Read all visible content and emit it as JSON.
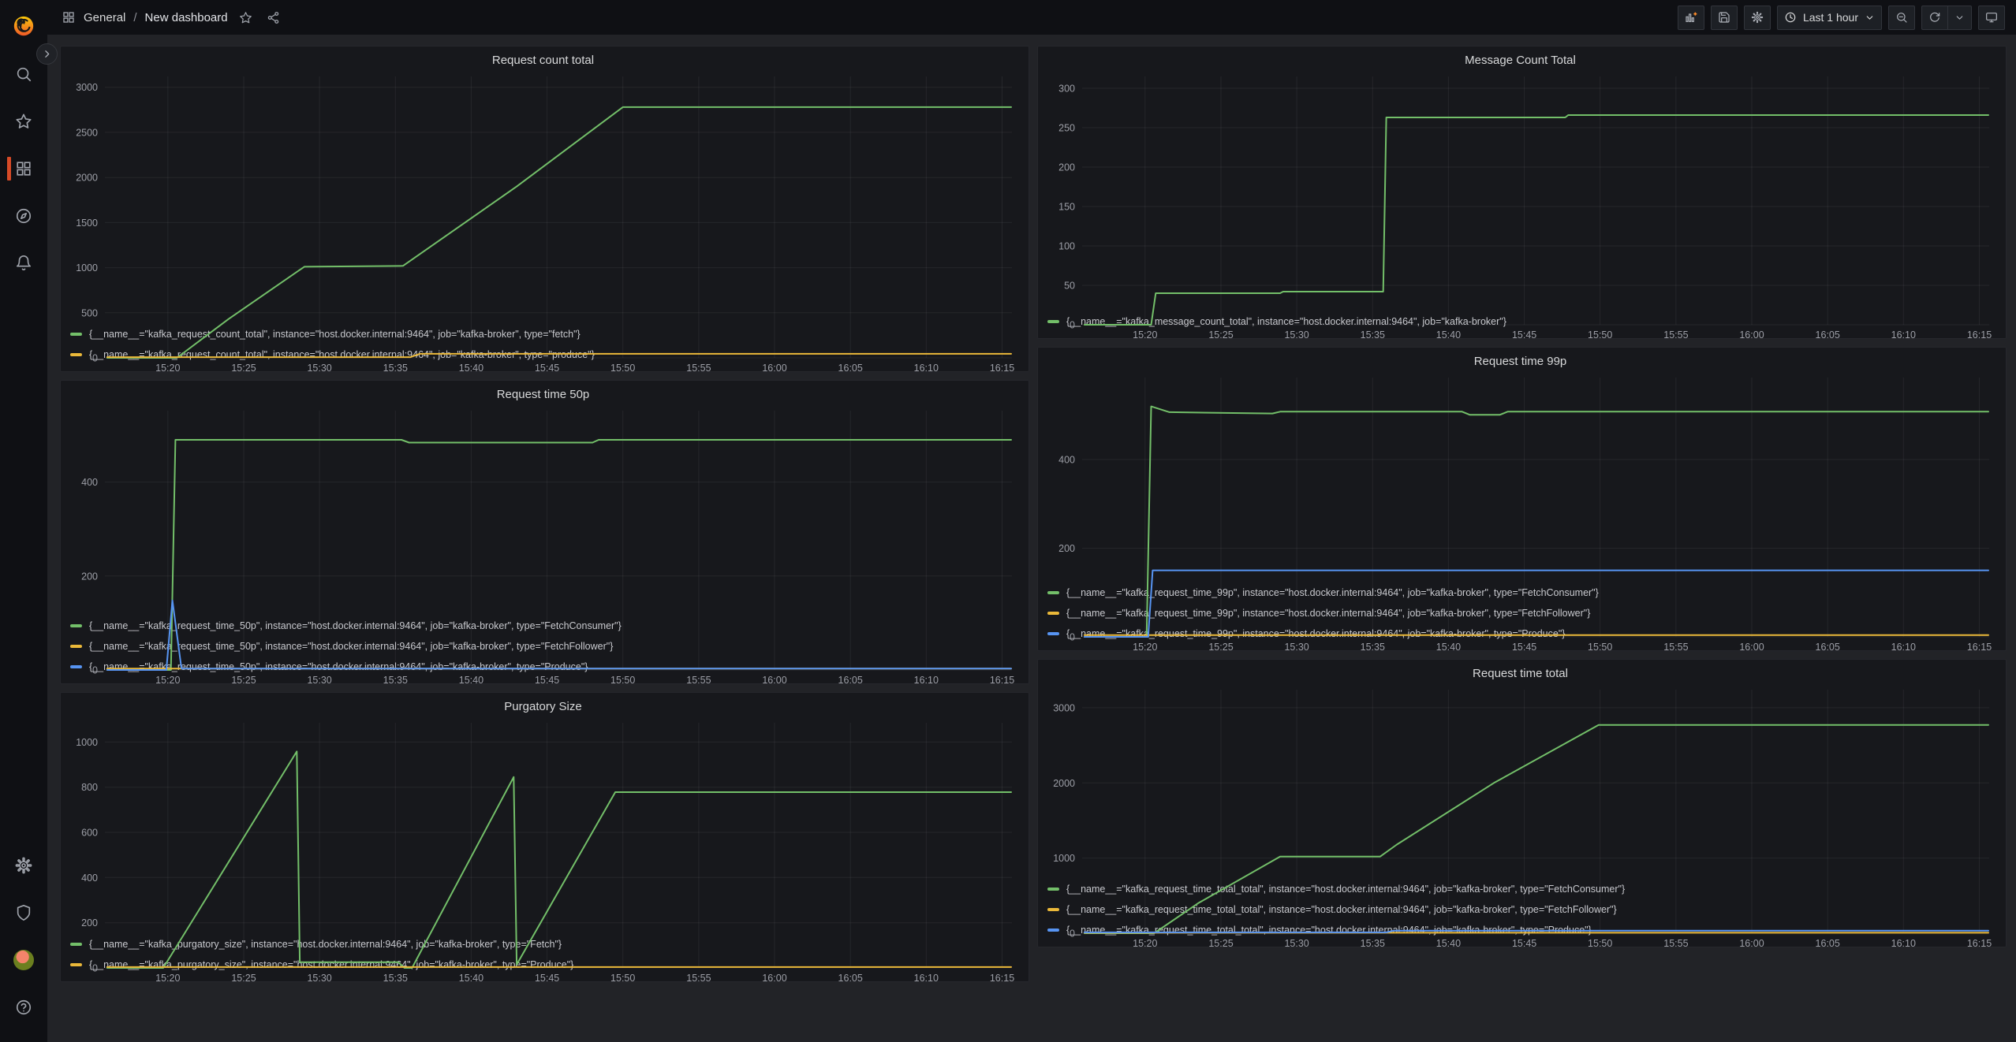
{
  "header": {
    "breadcrumb": {
      "section": "General",
      "separator": "/",
      "title": "New dashboard"
    },
    "actions": {
      "time_range": "Last 1 hour"
    }
  },
  "sidebar": {
    "items": [
      "search",
      "starred",
      "dashboards",
      "explore",
      "alerting"
    ],
    "bottom_items": [
      "configuration",
      "server-admin",
      "profile",
      "help"
    ],
    "active_item": "dashboards"
  },
  "colors": {
    "series_green": "#73BF69",
    "series_yellow": "#EAB839",
    "series_blue": "#5794F2",
    "sidebar_active_indicator": "#d64a27",
    "add_panel_plus": "#ff8c2a"
  },
  "x_axis": {
    "unit": "minutes-after-15:00",
    "range_minutes": [
      15.85,
      75.65
    ],
    "tick_minutes": [
      20,
      25,
      30,
      35,
      40,
      45,
      50,
      55,
      60,
      65,
      70,
      75
    ],
    "tick_labels": [
      "15:20",
      "15:25",
      "15:30",
      "15:35",
      "15:40",
      "15:45",
      "15:50",
      "15:55",
      "16:00",
      "16:05",
      "16:10",
      "16:15"
    ]
  },
  "chart_data": [
    {
      "type": "line",
      "title": "Request count total",
      "ymax": 3120,
      "yticks": [
        0,
        500,
        1000,
        1500,
        2000,
        2500,
        3000
      ],
      "series": [
        {
          "label": "{__name__=\"kafka_request_count_total\", instance=\"host.docker.internal:9464\", job=\"kafka-broker\", type=\"fetch\"}",
          "color": "#73BF69",
          "points": [
            [
              16,
              0
            ],
            [
              20.6,
              0
            ],
            [
              24,
              430
            ],
            [
              29,
              1010
            ],
            [
              35.5,
              1020
            ],
            [
              43,
              1900
            ],
            [
              50,
              2780
            ],
            [
              75.6,
              2780
            ]
          ]
        },
        {
          "label": "{__name__=\"kafka_request_count_total\", instance=\"host.docker.internal:9464\", job=\"kafka-broker\", type=\"produce\"}",
          "color": "#EAB839",
          "points": [
            [
              16,
              8
            ],
            [
              36,
              8
            ],
            [
              36.6,
              45
            ],
            [
              75.6,
              45
            ]
          ]
        }
      ]
    },
    {
      "type": "line",
      "title": "Request time 50p",
      "ymax": 552,
      "yticks": [
        0,
        200,
        400
      ],
      "series": [
        {
          "label": "{__name__=\"kafka_request_time_50p\", instance=\"host.docker.internal:9464\", job=\"kafka-broker\", type=\"FetchConsumer\"}",
          "color": "#73BF69",
          "points": [
            [
              16,
              0
            ],
            [
              20.2,
              0
            ],
            [
              20.5,
              490
            ],
            [
              35.4,
              490
            ],
            [
              35.9,
              484
            ],
            [
              48,
              484
            ],
            [
              48.4,
              490
            ],
            [
              75.6,
              490
            ]
          ]
        },
        {
          "label": "{__name__=\"kafka_request_time_50p\", instance=\"host.docker.internal:9464\", job=\"kafka-broker\", type=\"FetchFollower\"}",
          "color": "#EAB839",
          "points": [
            [
              16,
              3
            ],
            [
              75.6,
              3
            ]
          ]
        },
        {
          "label": "{__name__=\"kafka_request_time_50p\", instance=\"host.docker.internal:9464\", job=\"kafka-broker\", type=\"Produce\"}",
          "color": "#5794F2",
          "points": [
            [
              16,
              0
            ],
            [
              19.9,
              0
            ],
            [
              20.3,
              148
            ],
            [
              20.9,
              3
            ],
            [
              75.6,
              3
            ]
          ]
        }
      ]
    },
    {
      "type": "line",
      "title": "Purgatory Size",
      "ymax": 1085,
      "yticks": [
        0,
        200,
        400,
        600,
        800,
        1000
      ],
      "series": [
        {
          "label": "{__name__=\"kafka_purgatory_size\", instance=\"host.docker.internal:9464\", job=\"kafka-broker\", type=\"Fetch\"}",
          "color": "#73BF69",
          "points": [
            [
              16,
              0
            ],
            [
              19.7,
              0
            ],
            [
              28.5,
              958
            ],
            [
              28.7,
              25
            ],
            [
              35.2,
              25
            ],
            [
              35.6,
              0
            ],
            [
              36.1,
              0
            ],
            [
              42.8,
              845
            ],
            [
              43,
              15
            ],
            [
              49.5,
              778
            ],
            [
              75.6,
              778
            ]
          ]
        },
        {
          "label": "{__name__=\"kafka_purgatory_size\", instance=\"host.docker.internal:9464\", job=\"kafka-broker\", type=\"Produce\"}",
          "color": "#EAB839",
          "points": [
            [
              16,
              4
            ],
            [
              75.6,
              4
            ]
          ]
        }
      ]
    },
    {
      "type": "line",
      "title": "Message Count Total",
      "ymax": 315,
      "yticks": [
        0,
        50,
        100,
        150,
        200,
        250,
        300
      ],
      "series": [
        {
          "label": "{__name__=\"kafka_message_count_total\", instance=\"host.docker.internal:9464\", job=\"kafka-broker\"}",
          "color": "#73BF69",
          "points": [
            [
              16,
              0
            ],
            [
              20.4,
              0
            ],
            [
              20.7,
              40
            ],
            [
              28.9,
              40
            ],
            [
              29.1,
              42
            ],
            [
              35.7,
              42
            ],
            [
              35.9,
              263
            ],
            [
              47.7,
              263
            ],
            [
              47.9,
              266
            ],
            [
              75.6,
              266
            ]
          ]
        }
      ]
    },
    {
      "type": "line",
      "title": "Request time 99p",
      "ymax": 585,
      "yticks": [
        0,
        200,
        400
      ],
      "series": [
        {
          "label": "{__name__=\"kafka_request_time_99p\", instance=\"host.docker.internal:9464\", job=\"kafka-broker\", type=\"FetchConsumer\"}",
          "color": "#73BF69",
          "points": [
            [
              16,
              0
            ],
            [
              20.1,
              0
            ],
            [
              20.4,
              520
            ],
            [
              21.6,
              507
            ],
            [
              28.4,
              504
            ],
            [
              28.9,
              508
            ],
            [
              40.9,
              508
            ],
            [
              41.4,
              501
            ],
            [
              43.4,
              501
            ],
            [
              43.9,
              508
            ],
            [
              75.6,
              508
            ]
          ]
        },
        {
          "label": "{__name__=\"kafka_request_time_99p\", instance=\"host.docker.internal:9464\", job=\"kafka-broker\", type=\"FetchFollower\"}",
          "color": "#EAB839",
          "points": [
            [
              16,
              4
            ],
            [
              75.6,
              4
            ]
          ]
        },
        {
          "label": "{__name__=\"kafka_request_time_99p\", instance=\"host.docker.internal:9464\", job=\"kafka-broker\", type=\"Produce\"}",
          "color": "#5794F2",
          "points": [
            [
              16,
              0
            ],
            [
              20.2,
              0
            ],
            [
              20.5,
              150
            ],
            [
              75.6,
              150
            ]
          ]
        }
      ]
    },
    {
      "type": "line",
      "title": "Request time total",
      "ymax": 3240,
      "yticks": [
        0,
        1000,
        2000,
        3000
      ],
      "series": [
        {
          "label": "{__name__=\"kafka_request_time_total_total\", instance=\"host.docker.internal:9464\", job=\"kafka-broker\", type=\"FetchConsumer\"}",
          "color": "#73BF69",
          "points": [
            [
              16,
              0
            ],
            [
              20.6,
              0
            ],
            [
              23.5,
              400
            ],
            [
              28.9,
              1020
            ],
            [
              35.5,
              1020
            ],
            [
              36.6,
              1180
            ],
            [
              43,
              2000
            ],
            [
              49.9,
              2770
            ],
            [
              75.6,
              2770
            ]
          ]
        },
        {
          "label": "{__name__=\"kafka_request_time_total_total\", instance=\"host.docker.internal:9464\", job=\"kafka-broker\", type=\"FetchFollower\"}",
          "color": "#EAB839",
          "points": [
            [
              16,
              6
            ],
            [
              75.6,
              6
            ]
          ]
        },
        {
          "label": "{__name__=\"kafka_request_time_total_total\", instance=\"host.docker.internal:9464\", job=\"kafka-broker\", type=\"Produce\"}",
          "color": "#5794F2",
          "points": [
            [
              16,
              12
            ],
            [
              35.9,
              12
            ],
            [
              36.4,
              35
            ],
            [
              75.6,
              35
            ]
          ]
        }
      ]
    }
  ]
}
